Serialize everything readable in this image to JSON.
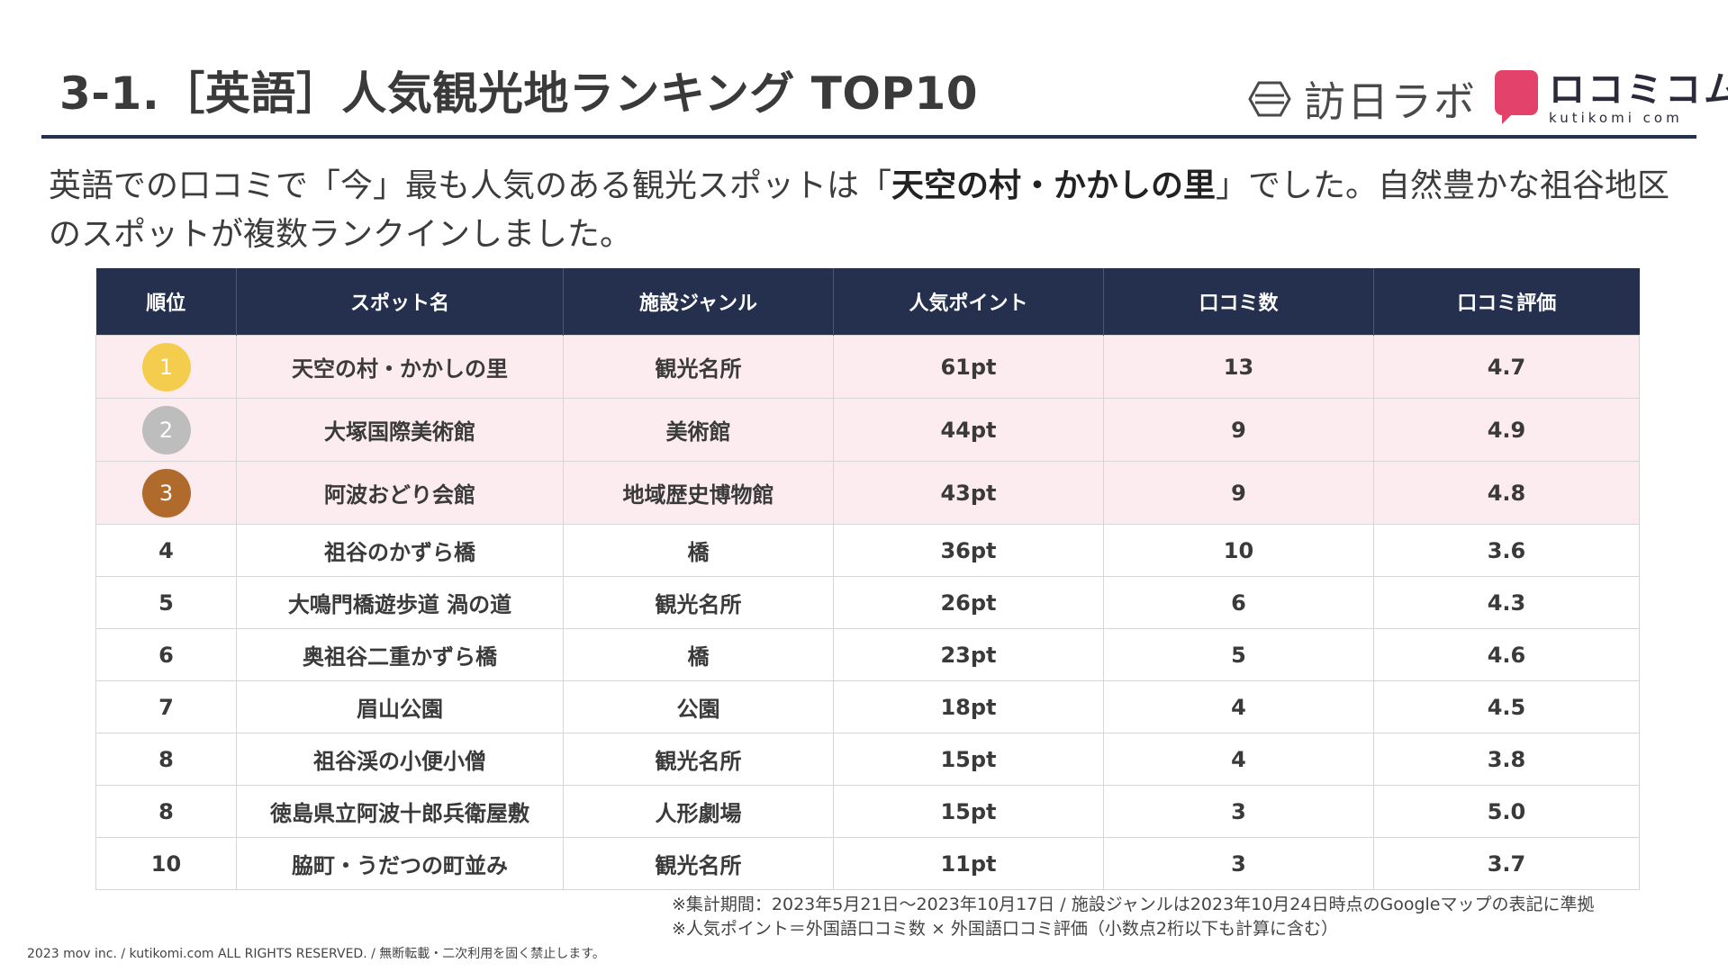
{
  "header": {
    "title": "3-1.［英語］人気観光地ランキング TOP10",
    "logo_text": "訪日ラボ",
    "brand_name": "ロコミコム",
    "brand_sub": "kutikomi com",
    "brand_color": "#e3426a",
    "rule_color": "#25304f"
  },
  "lead": {
    "part1": "英語での口コミで「今」最も人気のある観光スポットは「",
    "highlight": "天空の村・かかしの里",
    "part2": "」でした。自然豊かな祖谷地区のスポットが複数ランクインしました。"
  },
  "table": {
    "columns": [
      "順位",
      "スポット名",
      "施設ジャンル",
      "人気ポイント",
      "口コミ数",
      "口コミ評価"
    ],
    "header_color": "#25304f",
    "top_row_color": "#fcecf0",
    "rows": [
      {
        "rank": "1",
        "spot": "天空の村・かかしの里",
        "genre": "観光名所",
        "points": "61pt",
        "reviews": "13",
        "rating": "4.7",
        "medal": "gold",
        "medal_color": "#f5cd4e"
      },
      {
        "rank": "2",
        "spot": "大塚国際美術館",
        "genre": "美術館",
        "points": "44pt",
        "reviews": "9",
        "rating": "4.9",
        "medal": "silver",
        "medal_color": "#bdbdbd"
      },
      {
        "rank": "3",
        "spot": "阿波おどり会館",
        "genre": "地域歴史博物館",
        "points": "43pt",
        "reviews": "9",
        "rating": "4.8",
        "medal": "bronze",
        "medal_color": "#b06a2c"
      },
      {
        "rank": "4",
        "spot": "祖谷のかずら橋",
        "genre": "橋",
        "points": "36pt",
        "reviews": "10",
        "rating": "3.6"
      },
      {
        "rank": "5",
        "spot": "大鳴門橋遊歩道 渦の道",
        "genre": "観光名所",
        "points": "26pt",
        "reviews": "6",
        "rating": "4.3"
      },
      {
        "rank": "6",
        "spot": "奥祖谷二重かずら橋",
        "genre": "橋",
        "points": "23pt",
        "reviews": "5",
        "rating": "4.6"
      },
      {
        "rank": "7",
        "spot": "眉山公園",
        "genre": "公園",
        "points": "18pt",
        "reviews": "4",
        "rating": "4.5"
      },
      {
        "rank": "8",
        "spot": "祖谷渓の小便小僧",
        "genre": "観光名所",
        "points": "15pt",
        "reviews": "4",
        "rating": "3.8"
      },
      {
        "rank": "8",
        "spot": "徳島県立阿波十郎兵衛屋敷",
        "genre": "人形劇場",
        "points": "15pt",
        "reviews": "3",
        "rating": "5.0"
      },
      {
        "rank": "10",
        "spot": "脇町・うだつの町並み",
        "genre": "観光名所",
        "points": "11pt",
        "reviews": "3",
        "rating": "3.7"
      }
    ]
  },
  "notes": {
    "line1": "※集計期間：2023年5月21日〜2023年10月17日 / 施設ジャンルは2023年10月24日時点のGoogleマップの表記に準拠",
    "line2": "※人気ポイント＝外国語口コミ数 × 外国語口コミ評価（小数点2桁以下も計算に含む）"
  },
  "footer": {
    "copyright": "2023 mov inc. / kutikomi.com ALL RIGHTS RESERVED. / 無断転載・二次利用を固く禁止します。"
  }
}
